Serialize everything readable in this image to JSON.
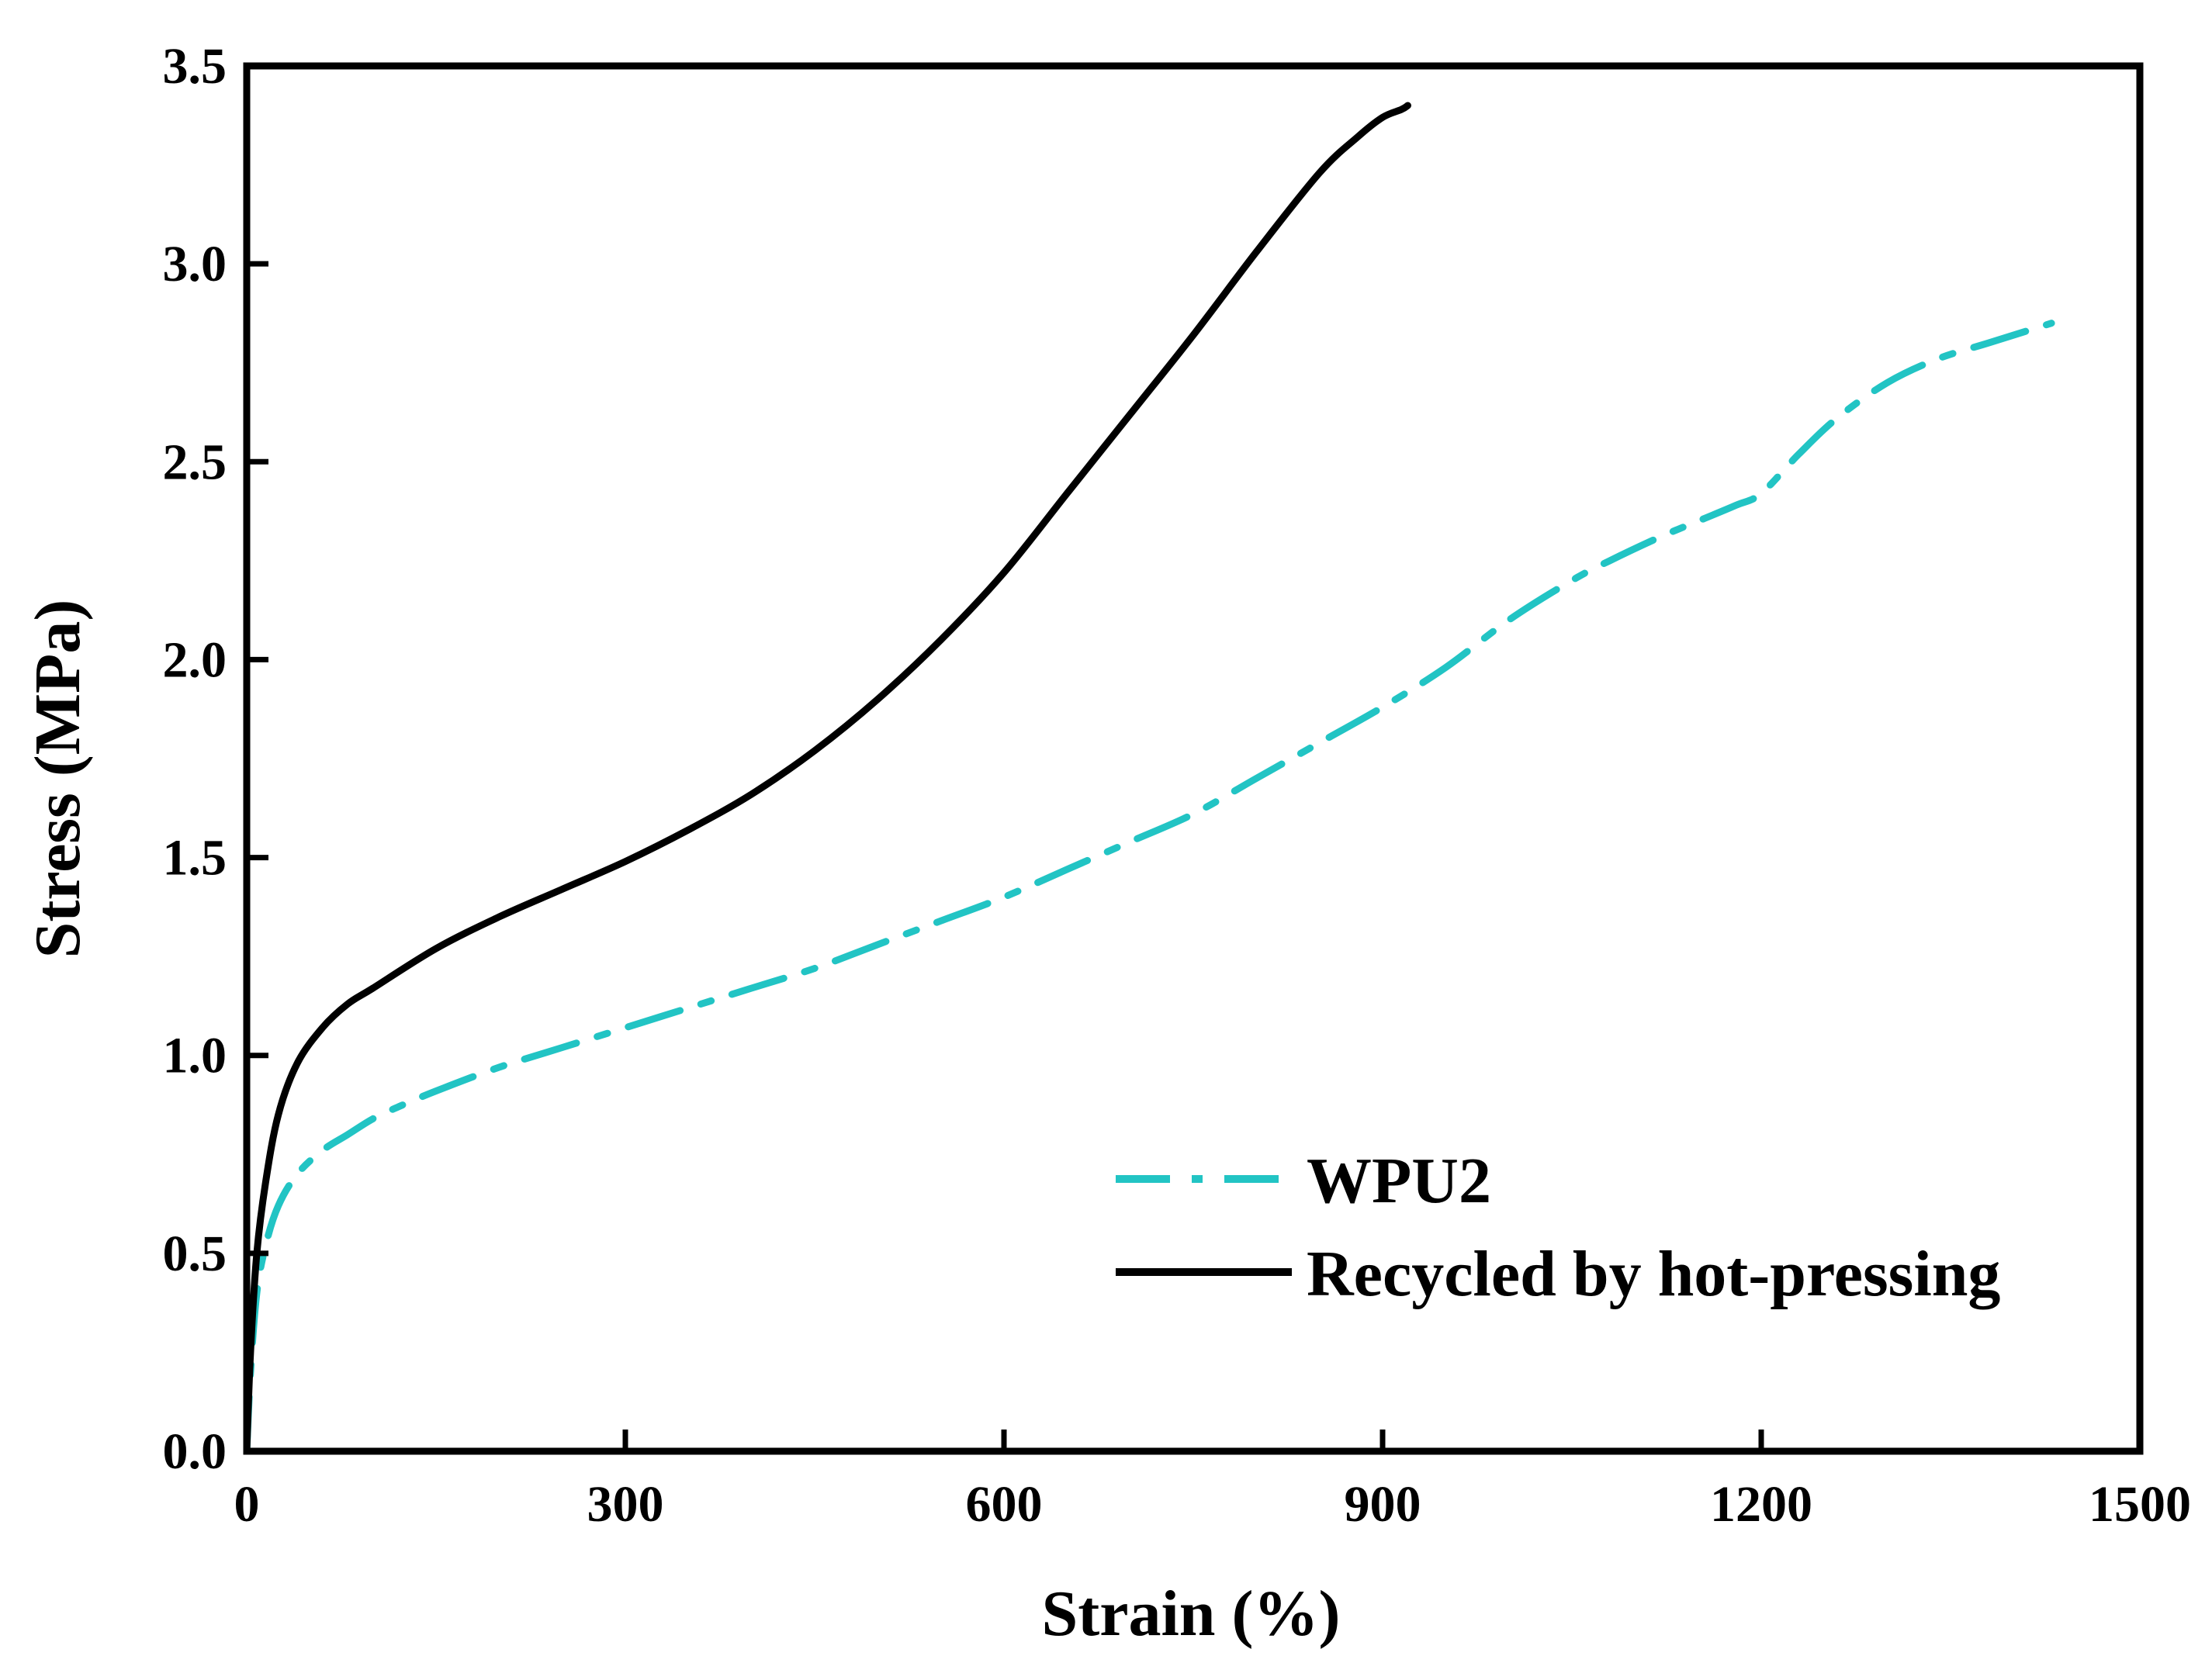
{
  "chart_data": {
    "type": "line",
    "title": "",
    "xlabel": "Strain (%)",
    "ylabel": "Stress (MPa)",
    "xlim": [
      0,
      1500
    ],
    "ylim": [
      0,
      3.5
    ],
    "xticks": [
      0,
      300,
      600,
      900,
      1200,
      1500
    ],
    "xtick_labels": [
      "0",
      "300",
      "600",
      "900",
      "1200",
      "1500"
    ],
    "yticks": [
      0,
      0.5,
      1.0,
      1.5,
      2.0,
      2.5,
      3.0,
      3.5
    ],
    "ytick_labels": [
      "0.0",
      "0.5",
      "1.0",
      "1.5",
      "2.0",
      "2.5",
      "3.0",
      "3.5"
    ],
    "grid": false,
    "legend_position": "bottom-right",
    "series": [
      {
        "name": "WPU2",
        "color": "#22C4C4",
        "style": "dash-dot",
        "x": [
          0,
          3,
          8,
          15,
          25,
          40,
          60,
          80,
          100,
          120,
          150,
          200,
          250,
          300,
          350,
          400,
          450,
          500,
          550,
          600,
          650,
          700,
          750,
          800,
          850,
          900,
          950,
          1000,
          1050,
          1080,
          1120,
          1150,
          1180,
          1200,
          1230,
          1260,
          1300,
          1340,
          1380,
          1410,
          1430
        ],
        "y": [
          0,
          0.2,
          0.4,
          0.52,
          0.62,
          0.7,
          0.76,
          0.8,
          0.84,
          0.87,
          0.91,
          0.97,
          1.02,
          1.07,
          1.12,
          1.17,
          1.22,
          1.28,
          1.34,
          1.4,
          1.47,
          1.54,
          1.61,
          1.7,
          1.79,
          1.88,
          1.98,
          2.1,
          2.2,
          2.25,
          2.31,
          2.35,
          2.39,
          2.42,
          2.52,
          2.61,
          2.7,
          2.76,
          2.8,
          2.83,
          2.85
        ]
      },
      {
        "name": "Recycled by hot-pressing",
        "color": "#000000",
        "style": "solid",
        "x": [
          0,
          3,
          8,
          15,
          25,
          40,
          60,
          80,
          100,
          150,
          200,
          250,
          300,
          350,
          400,
          450,
          500,
          550,
          600,
          650,
          700,
          750,
          800,
          850,
          880,
          900,
          915,
          920
        ],
        "y": [
          0,
          0.25,
          0.5,
          0.68,
          0.85,
          0.98,
          1.07,
          1.13,
          1.17,
          1.27,
          1.35,
          1.42,
          1.49,
          1.57,
          1.66,
          1.77,
          1.9,
          2.05,
          2.22,
          2.42,
          2.62,
          2.82,
          3.03,
          3.23,
          3.32,
          3.37,
          3.39,
          3.4
        ]
      }
    ]
  }
}
